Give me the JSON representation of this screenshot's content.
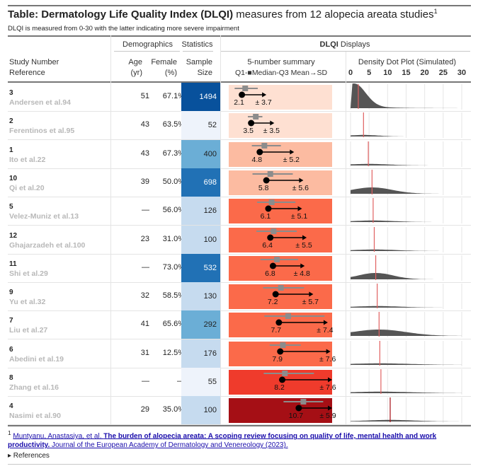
{
  "title_bold": "Table: Dermatology Life Quality Index (DLQI)",
  "title_rest": " measures from 12 alopecia areata studies",
  "title_sup": "1",
  "subtitle": "DLQI is measured from 0-30 with the latter indicating more severe impairment",
  "headers": {
    "demographics": "Demographics",
    "statistics": "Statistics",
    "dlqi_bold": "DLQI",
    "dlqi_rest": " Displays",
    "study_number": "Study Number",
    "reference": "Reference",
    "age": "Age",
    "age_unit": "(yr)",
    "female": "Female",
    "female_unit": "(%)",
    "sample": "Sample",
    "sample_size": "Size",
    "summary_line1": "5-number summary",
    "summary_line2": "Q1-■Median-Q3 Mean→SD",
    "density_label": "Density Dot Plot (Simulated)"
  },
  "density_axis_ticks": [
    "0",
    "5",
    "10",
    "15",
    "20",
    "25",
    "30"
  ],
  "colors": {
    "sample_scale": [
      "#eef3fb",
      "#c6dbef",
      "#6baed6",
      "#2171b5",
      "#08519c"
    ],
    "mean_scale": [
      "#fee0d2",
      "#fcbba1",
      "#fc9272",
      "#fb6a4a",
      "#ef3b2c",
      "#cb181d",
      "#a50f15"
    ],
    "box": "#8c8c8c",
    "density": "#555555",
    "mean_line": "#e06060"
  },
  "chart_data": {
    "type": "table",
    "dlqi_range": [
      0,
      30
    ],
    "rows": [
      {
        "rank": "3",
        "ref": "Andersen et al.94",
        "age": "51",
        "female": "67.1%",
        "n": "1494",
        "mean": "2.1",
        "sd": "± 3.7",
        "mean_v": 2.1,
        "sd_v": 3.7,
        "q1": 1.0,
        "median": 2.6,
        "q3": 4.5,
        "fill": "#fee0d2",
        "ss_color": "#08519c",
        "ss_light": false,
        "density_shape": "right-skewed"
      },
      {
        "rank": "2",
        "ref": "Ferentinos et al.95",
        "age": "43",
        "female": "63.5%",
        "n": "52",
        "mean": "3.5",
        "sd": "± 3.5",
        "mean_v": 3.5,
        "sd_v": 3.5,
        "q1": 3.0,
        "median": 4.2,
        "q3": 5.2,
        "fill": "#fee0d2",
        "ss_color": "#eef3fb",
        "ss_light": true,
        "density_shape": "flat"
      },
      {
        "rank": "1",
        "ref": "Ito et al.22",
        "age": "43",
        "female": "67.3%",
        "n": "400",
        "mean": "4.8",
        "sd": "± 5.2",
        "mean_v": 4.8,
        "sd_v": 5.2,
        "q1": 3.6,
        "median": 5.5,
        "q3": 8.0,
        "fill": "#fcbba1",
        "ss_color": "#6baed6",
        "ss_light": true,
        "density_shape": "flat"
      },
      {
        "rank": "10",
        "ref": "Qi et al.20",
        "age": "39",
        "female": "50.0%",
        "n": "698",
        "mean": "5.8",
        "sd": "± 5.6",
        "mean_v": 5.8,
        "sd_v": 5.6,
        "q1": 3.7,
        "median": 6.4,
        "q3": 9.8,
        "fill": "#fcbba1",
        "ss_color": "#2171b5",
        "ss_light": false,
        "density_shape": "broad"
      },
      {
        "rank": "5",
        "ref": "Velez-Muniz et al.13",
        "age": "—",
        "female": "56.0%",
        "n": "126",
        "mean": "6.1",
        "sd": "± 5.1",
        "mean_v": 6.1,
        "sd_v": 5.1,
        "q1": 4.4,
        "median": 6.6,
        "q3": 10.2,
        "fill": "#fb6a4a",
        "ss_color": "#c6dbef",
        "ss_light": true,
        "density_shape": "flat"
      },
      {
        "rank": "12",
        "ref": "Ghajarzadeh et al.100",
        "age": "23",
        "female": "31.0%",
        "n": "100",
        "mean": "6.4",
        "sd": "± 5.5",
        "mean_v": 6.4,
        "sd_v": 5.5,
        "q1": 4.3,
        "median": 6.9,
        "q3": 10.4,
        "fill": "#fb6a4a",
        "ss_color": "#c6dbef",
        "ss_light": true,
        "density_shape": "flat"
      },
      {
        "rank": "11",
        "ref": "Shi et al.29",
        "age": "—",
        "female": "73.0%",
        "n": "532",
        "mean": "6.8",
        "sd": "± 4.8",
        "mean_v": 6.8,
        "sd_v": 4.8,
        "q1": 4.9,
        "median": 7.4,
        "q3": 10.6,
        "fill": "#fb6a4a",
        "ss_color": "#2171b5",
        "ss_light": false,
        "density_shape": "broad"
      },
      {
        "rank": "9",
        "ref": "Yu et al.32",
        "age": "32",
        "female": "58.5%",
        "n": "130",
        "mean": "7.2",
        "sd": "± 5.7",
        "mean_v": 7.2,
        "sd_v": 5.7,
        "q1": 5.3,
        "median": 8.0,
        "q3": 11.5,
        "fill": "#fb6a4a",
        "ss_color": "#c6dbef",
        "ss_light": true,
        "density_shape": "flat"
      },
      {
        "rank": "7",
        "ref": "Liu et al.27",
        "age": "41",
        "female": "65.6%",
        "n": "292",
        "mean": "7.7",
        "sd": "± 7.4",
        "mean_v": 7.7,
        "sd_v": 7.4,
        "q1": 5.5,
        "median": 9.1,
        "q3": 14.6,
        "fill": "#fb6a4a",
        "ss_color": "#6baed6",
        "ss_light": true,
        "density_shape": "broad"
      },
      {
        "rank": "6",
        "ref": "Abedini et al.19",
        "age": "31",
        "female": "12.5%",
        "n": "176",
        "mean": "7.9",
        "sd": "± 7.6",
        "mean_v": 7.9,
        "sd_v": 7.6,
        "q1": 6.3,
        "median": 8.3,
        "q3": 11.0,
        "fill": "#fb6a4a",
        "ss_color": "#c6dbef",
        "ss_light": true,
        "density_shape": "flat"
      },
      {
        "rank": "8",
        "ref": "Zhang et al.16",
        "age": "—",
        "female": "—",
        "n": "55",
        "mean": "8.2",
        "sd": "± 7.6",
        "mean_v": 8.2,
        "sd_v": 7.6,
        "q1": 5.4,
        "median": 8.6,
        "q3": 13.0,
        "fill": "#ef3b2c",
        "ss_color": "#eef3fb",
        "ss_light": true,
        "density_shape": "flat"
      },
      {
        "rank": "4",
        "ref": "Nasimi et al.90",
        "age": "29",
        "female": "35.0%",
        "n": "100",
        "mean": "10.7",
        "sd": "± 5.9",
        "mean_v": 10.7,
        "sd_v": 5.9,
        "q1": 8.4,
        "median": 11.4,
        "q3": 14.4,
        "fill": "#a50f15",
        "ss_color": "#c6dbef",
        "ss_light": true,
        "density_shape": "flat"
      }
    ]
  },
  "footnote": {
    "sup": "1",
    "authors": "Muntyanu, Anastasiya, et al.",
    "paper_title": "The burden of alopecia areata: A scoping review focusing on quality of life, mental health and work productivity.",
    "journal": "Journal of the European Academy of Dermatology and Venereology (2023).",
    "references_label": "▸ References"
  }
}
